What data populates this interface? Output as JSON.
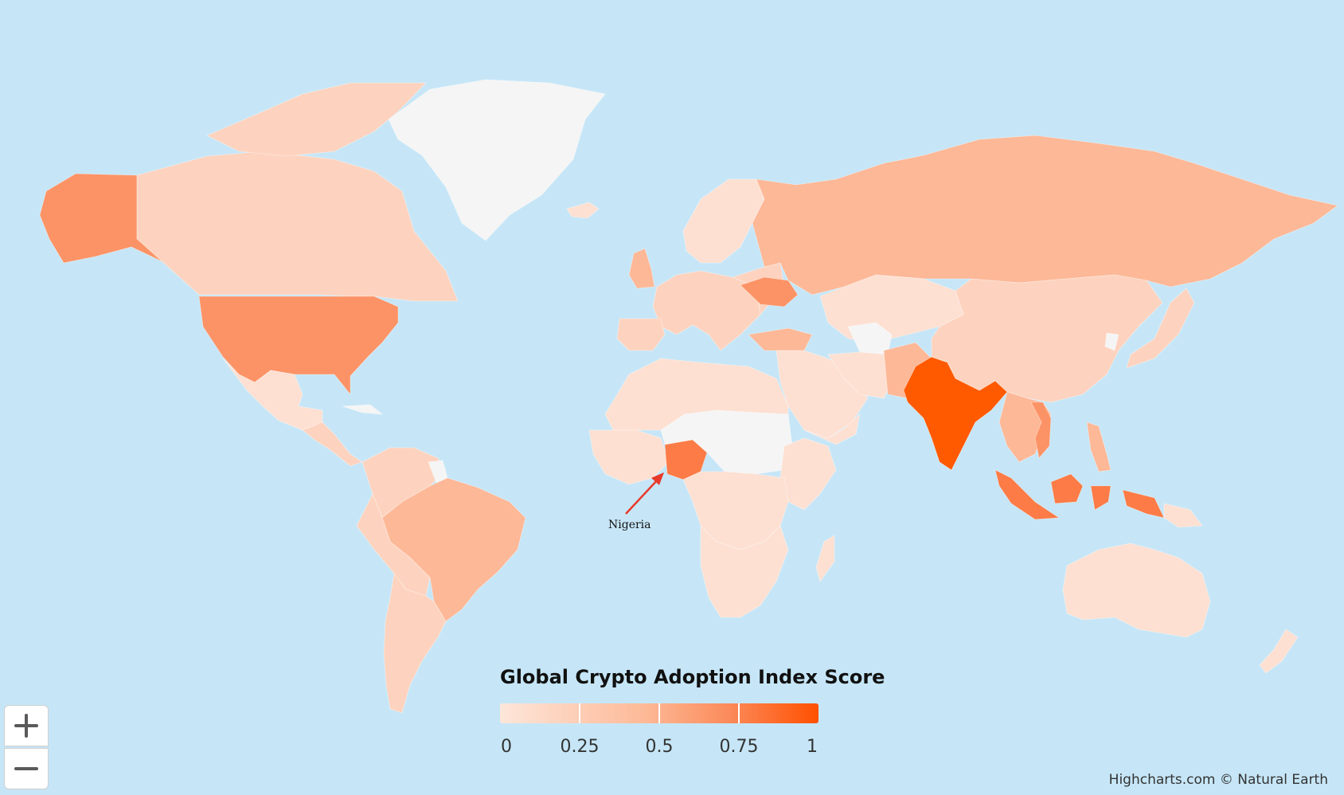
{
  "legend": {
    "title": "Global Crypto Adoption Index Score",
    "labels": [
      "0",
      "0.25",
      "0.5",
      "0.75",
      "1"
    ],
    "color_low": "#fde6da",
    "color_high": "#ff5000"
  },
  "annotation": {
    "label": "Nigeria",
    "arrow_color": "#e8392b"
  },
  "credits": "Highcharts.com © Natural Earth",
  "controls": {
    "zoom_in_icon": "plus-icon",
    "zoom_out_icon": "minus-icon"
  },
  "colors": {
    "ocean": "#c6e6f7",
    "no_data": "#f5f5f5",
    "very_low": "#fde0d2",
    "low": "#fdd3bf",
    "mid": "#fdb897",
    "high": "#fc9366",
    "very_high": "#fc7b46",
    "top": "#ff5a00"
  }
}
